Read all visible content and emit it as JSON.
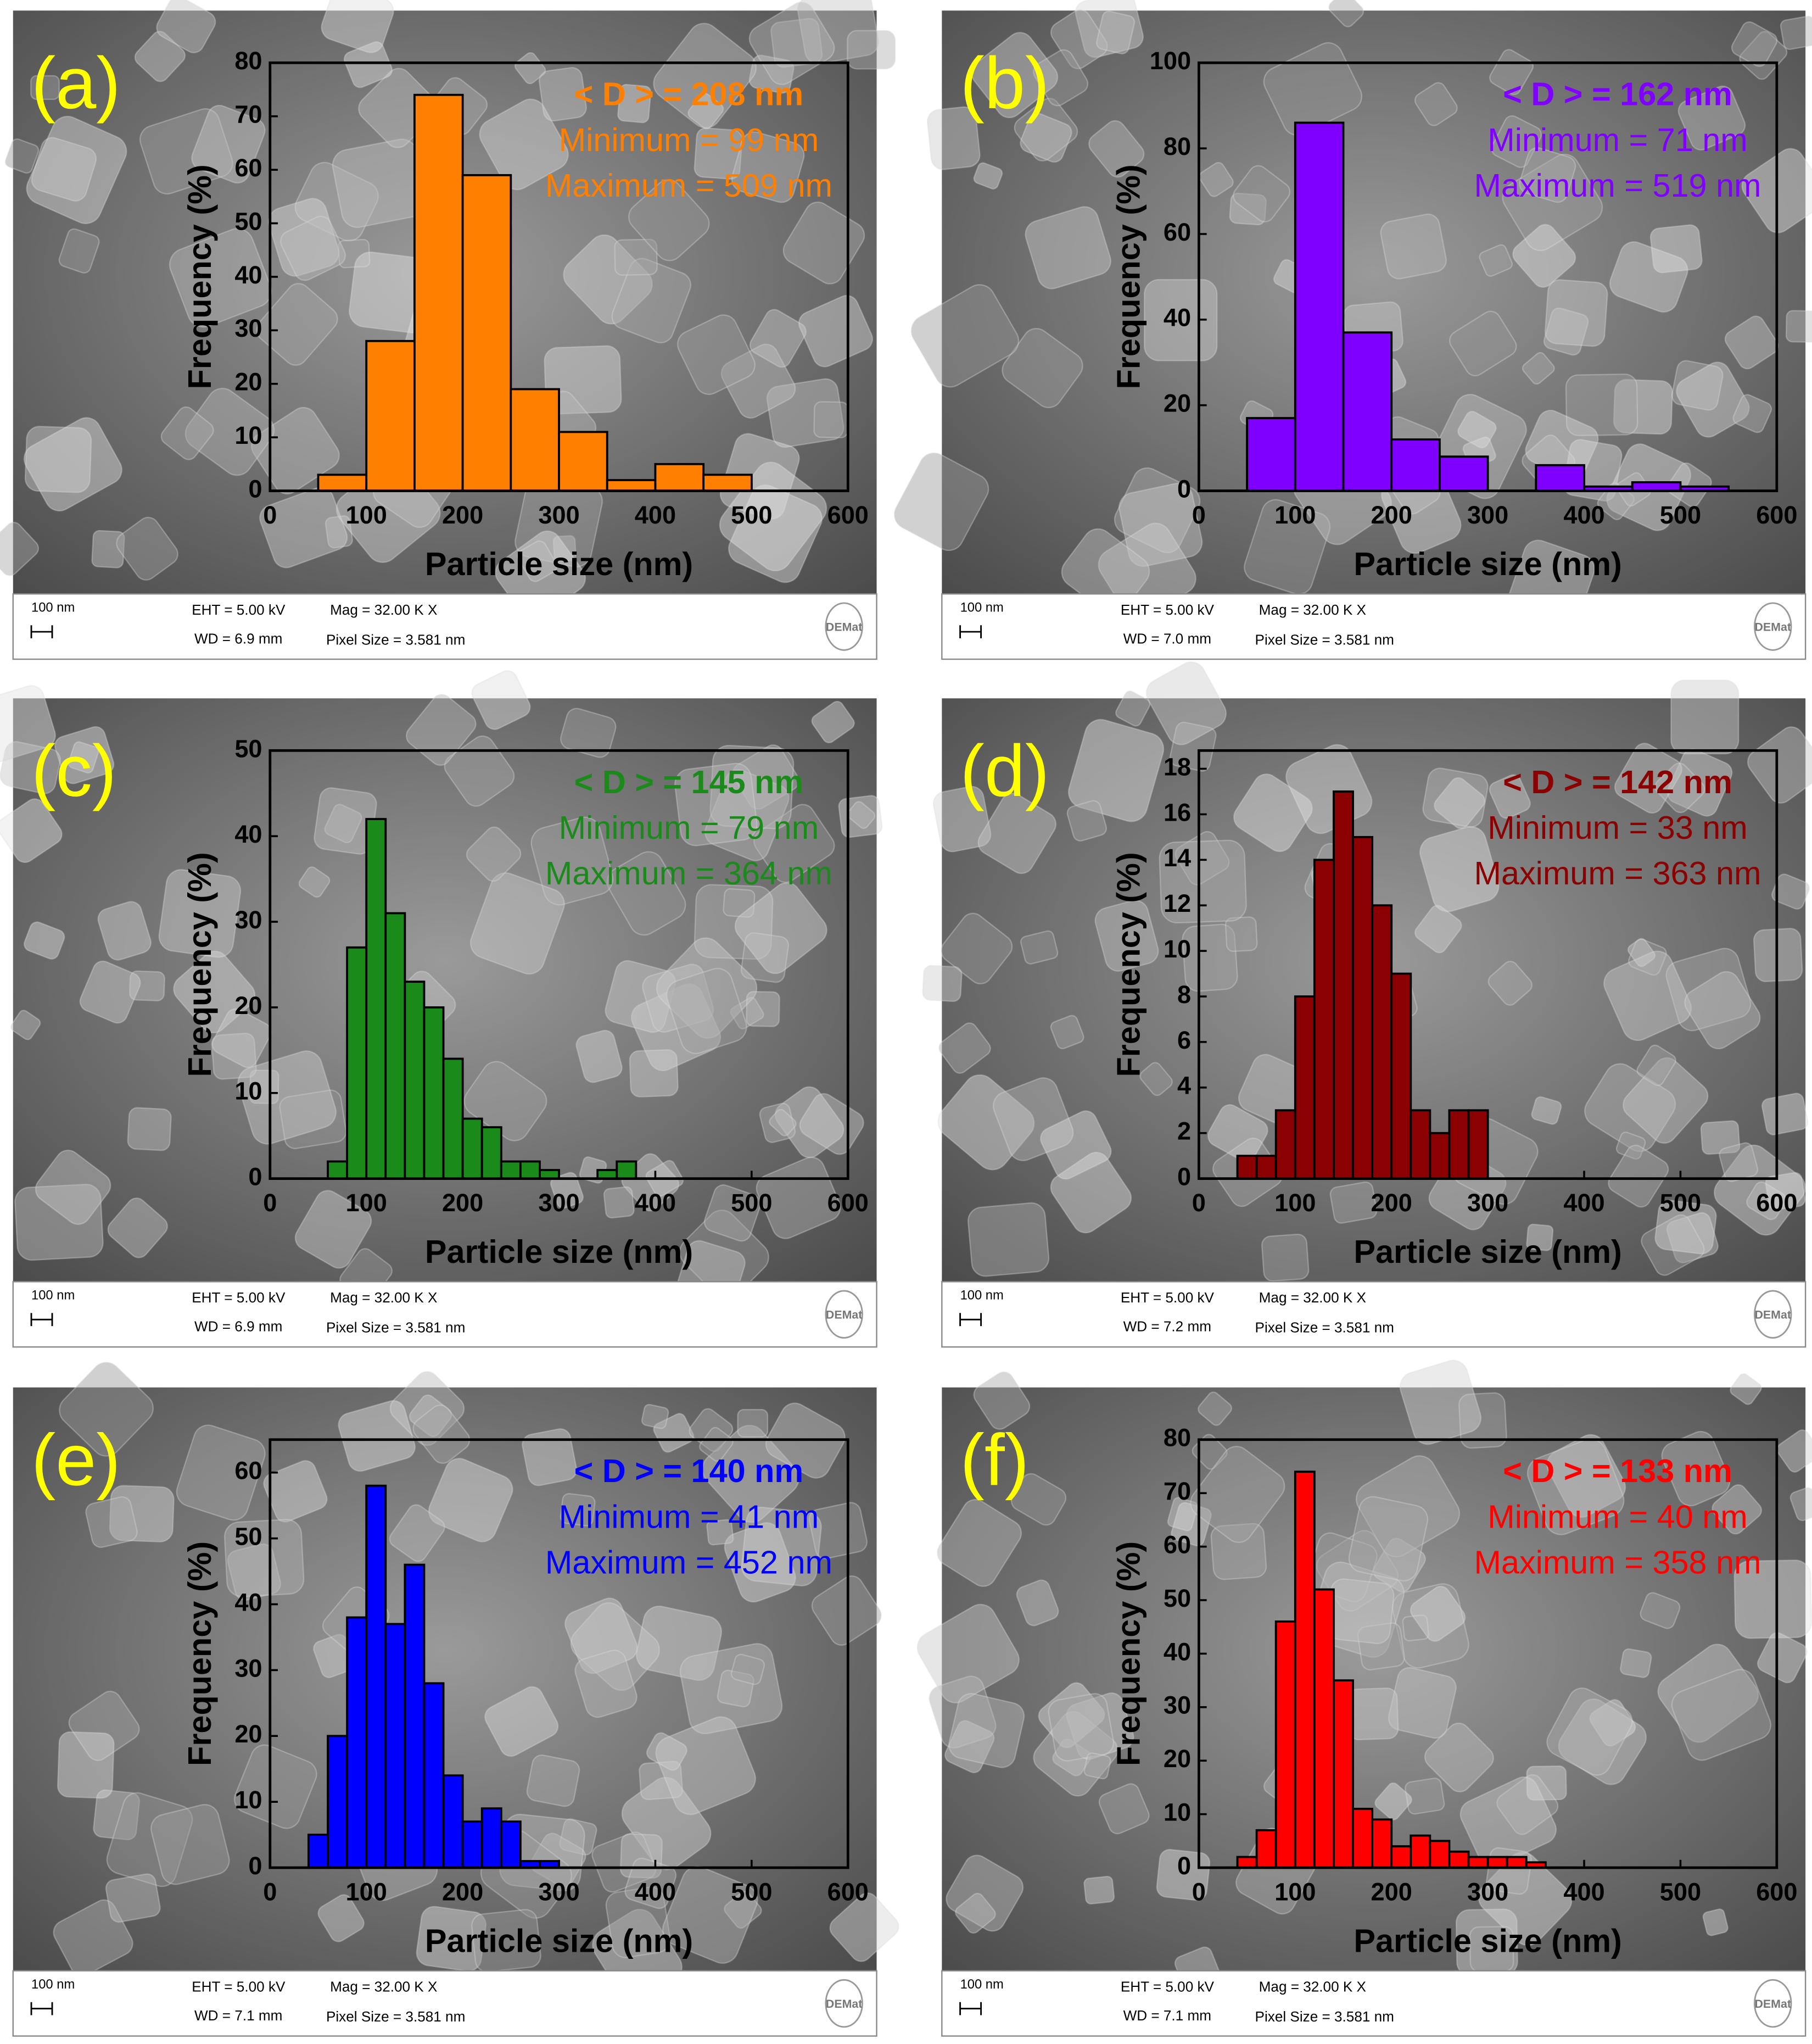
{
  "chart_data": [
    {
      "type": "histogram",
      "panel_label": "(a)",
      "color": "#ff8000",
      "x_label": "Particle size (nm)",
      "y_label": "Frequency (%)",
      "annotations": [
        "< D > = 208 nm",
        "Minimum = 99 nm",
        "Maximum = 509 nm"
      ],
      "bins": [
        50,
        100,
        150,
        200,
        250,
        300,
        350,
        400,
        450,
        500
      ],
      "values": [
        3,
        28,
        74,
        59,
        19,
        11,
        2,
        5,
        3
      ],
      "xlim": [
        0,
        600
      ],
      "xticks": [
        0,
        100,
        200,
        300,
        400,
        500,
        600
      ],
      "ylim": [
        0,
        80
      ],
      "yticks": [
        0,
        10,
        20,
        30,
        40,
        50,
        60,
        70,
        80
      ],
      "scalebar": "100 nm",
      "eht": "EHT = 5.00 kV",
      "mag": "Mag =  32.00 K X",
      "wd": "WD = 6.9 mm",
      "pixel_size": "Pixel Size = 3.581 nm",
      "logo": "DEMat"
    },
    {
      "type": "histogram",
      "panel_label": "(b)",
      "color": "#8000ff",
      "x_label": "Particle size (nm)",
      "y_label": "Frequency (%)",
      "annotations": [
        "< D > = 162 nm",
        "Minimum = 71 nm",
        "Maximum = 519 nm"
      ],
      "bins": [
        50,
        100,
        150,
        200,
        250,
        300,
        350,
        400,
        450,
        500,
        550
      ],
      "values": [
        17,
        86,
        37,
        12,
        8,
        0,
        6,
        1,
        2,
        1
      ],
      "xlim": [
        0,
        600
      ],
      "xticks": [
        0,
        100,
        200,
        300,
        400,
        500,
        600
      ],
      "ylim": [
        0,
        100
      ],
      "yticks": [
        0,
        20,
        40,
        60,
        80,
        100
      ],
      "scalebar": "100 nm",
      "eht": "EHT = 5.00 kV",
      "mag": "Mag =  32.00 K X",
      "wd": "WD = 7.0 mm",
      "pixel_size": "Pixel Size = 3.581 nm",
      "logo": "DEMat"
    },
    {
      "type": "histogram",
      "panel_label": "(c)",
      "color": "#1a8a1a",
      "x_label": "Particle size (nm)",
      "y_label": "Frequency (%)",
      "annotations": [
        "< D > = 145 nm",
        "Minimum = 79 nm",
        "Maximum = 364 nm"
      ],
      "bins": [
        60,
        80,
        100,
        120,
        140,
        160,
        180,
        200,
        220,
        240,
        260,
        280,
        300,
        320,
        340,
        360,
        380
      ],
      "values": [
        2,
        27,
        42,
        31,
        23,
        20,
        14,
        7,
        6,
        2,
        2,
        1,
        0,
        0,
        1,
        2
      ],
      "xlim": [
        0,
        600
      ],
      "xticks": [
        0,
        100,
        200,
        300,
        400,
        500,
        600
      ],
      "ylim": [
        0,
        50
      ],
      "yticks": [
        0,
        10,
        20,
        30,
        40,
        50
      ],
      "scalebar": "100 nm",
      "eht": "EHT = 5.00 kV",
      "mag": "Mag =  32.00 K X",
      "wd": "WD = 6.9 mm",
      "pixel_size": "Pixel Size = 3.581 nm",
      "logo": "DEMat"
    },
    {
      "type": "histogram",
      "panel_label": "(d)",
      "color": "#8b0000",
      "x_label": "Particle size (nm)",
      "y_label": "Frequency (%)",
      "annotations": [
        "< D > = 142 nm",
        "Minimum = 33 nm",
        "Maximum = 363 nm"
      ],
      "bins": [
        40,
        60,
        80,
        100,
        120,
        140,
        160,
        180,
        200,
        220,
        240,
        260,
        280,
        300
      ],
      "values": [
        1,
        1,
        3,
        8,
        14,
        17,
        15,
        12,
        9,
        3,
        2,
        3,
        3
      ],
      "xlim": [
        0,
        600
      ],
      "xticks": [
        0,
        100,
        200,
        300,
        400,
        500,
        600
      ],
      "ylim": [
        0,
        18.8
      ],
      "yticks": [
        0,
        2,
        4,
        6,
        8,
        10,
        12,
        14,
        16,
        18
      ],
      "scalebar": "100 nm",
      "eht": "EHT = 5.00 kV",
      "mag": "Mag =  32.00 K X",
      "wd": "WD = 7.2 mm",
      "pixel_size": "Pixel Size = 3.581 nm",
      "logo": "DEMat"
    },
    {
      "type": "histogram",
      "panel_label": "(e)",
      "color": "#0000ff",
      "x_label": "Particle size (nm)",
      "y_label": "Frequency (%)",
      "annotations": [
        "< D > = 140 nm",
        "Minimum = 41 nm",
        "Maximum = 452 nm"
      ],
      "bins": [
        40,
        60,
        80,
        100,
        120,
        140,
        160,
        180,
        200,
        220,
        240,
        260,
        280,
        300
      ],
      "values": [
        5,
        20,
        38,
        58,
        37,
        46,
        28,
        14,
        7,
        9,
        7,
        1,
        1
      ],
      "xlim": [
        0,
        600
      ],
      "xticks": [
        0,
        100,
        200,
        300,
        400,
        500,
        600
      ],
      "ylim": [
        0,
        65
      ],
      "yticks": [
        0,
        10,
        20,
        30,
        40,
        50,
        60
      ],
      "scalebar": "100 nm",
      "eht": "EHT = 5.00 kV",
      "mag": "Mag =  32.00 K X",
      "wd": "WD = 7.1 mm",
      "pixel_size": "Pixel Size = 3.581 nm",
      "logo": "DEMat"
    },
    {
      "type": "histogram",
      "panel_label": "(f)",
      "color": "#ff0000",
      "x_label": "Particle size (nm)",
      "y_label": "Frequency (%)",
      "annotations": [
        "< D > = 133 nm",
        "Minimum = 40 nm",
        "Maximum = 358 nm"
      ],
      "bins": [
        40,
        60,
        80,
        100,
        120,
        140,
        160,
        180,
        200,
        220,
        240,
        260,
        280,
        300,
        320,
        340,
        360
      ],
      "values": [
        2,
        7,
        46,
        74,
        52,
        35,
        11,
        9,
        4,
        6,
        5,
        3,
        2,
        2,
        2,
        1
      ],
      "xlim": [
        0,
        600
      ],
      "xticks": [
        0,
        100,
        200,
        300,
        400,
        500,
        600
      ],
      "ylim": [
        0,
        80
      ],
      "yticks": [
        0,
        10,
        20,
        30,
        40,
        50,
        60,
        70,
        80
      ],
      "scalebar": "100 nm",
      "eht": "EHT = 5.00 kV",
      "mag": "Mag =  32.00 K X",
      "wd": "WD = 7.1 mm",
      "pixel_size": "Pixel Size = 3.581 nm",
      "logo": "DEMat"
    }
  ]
}
